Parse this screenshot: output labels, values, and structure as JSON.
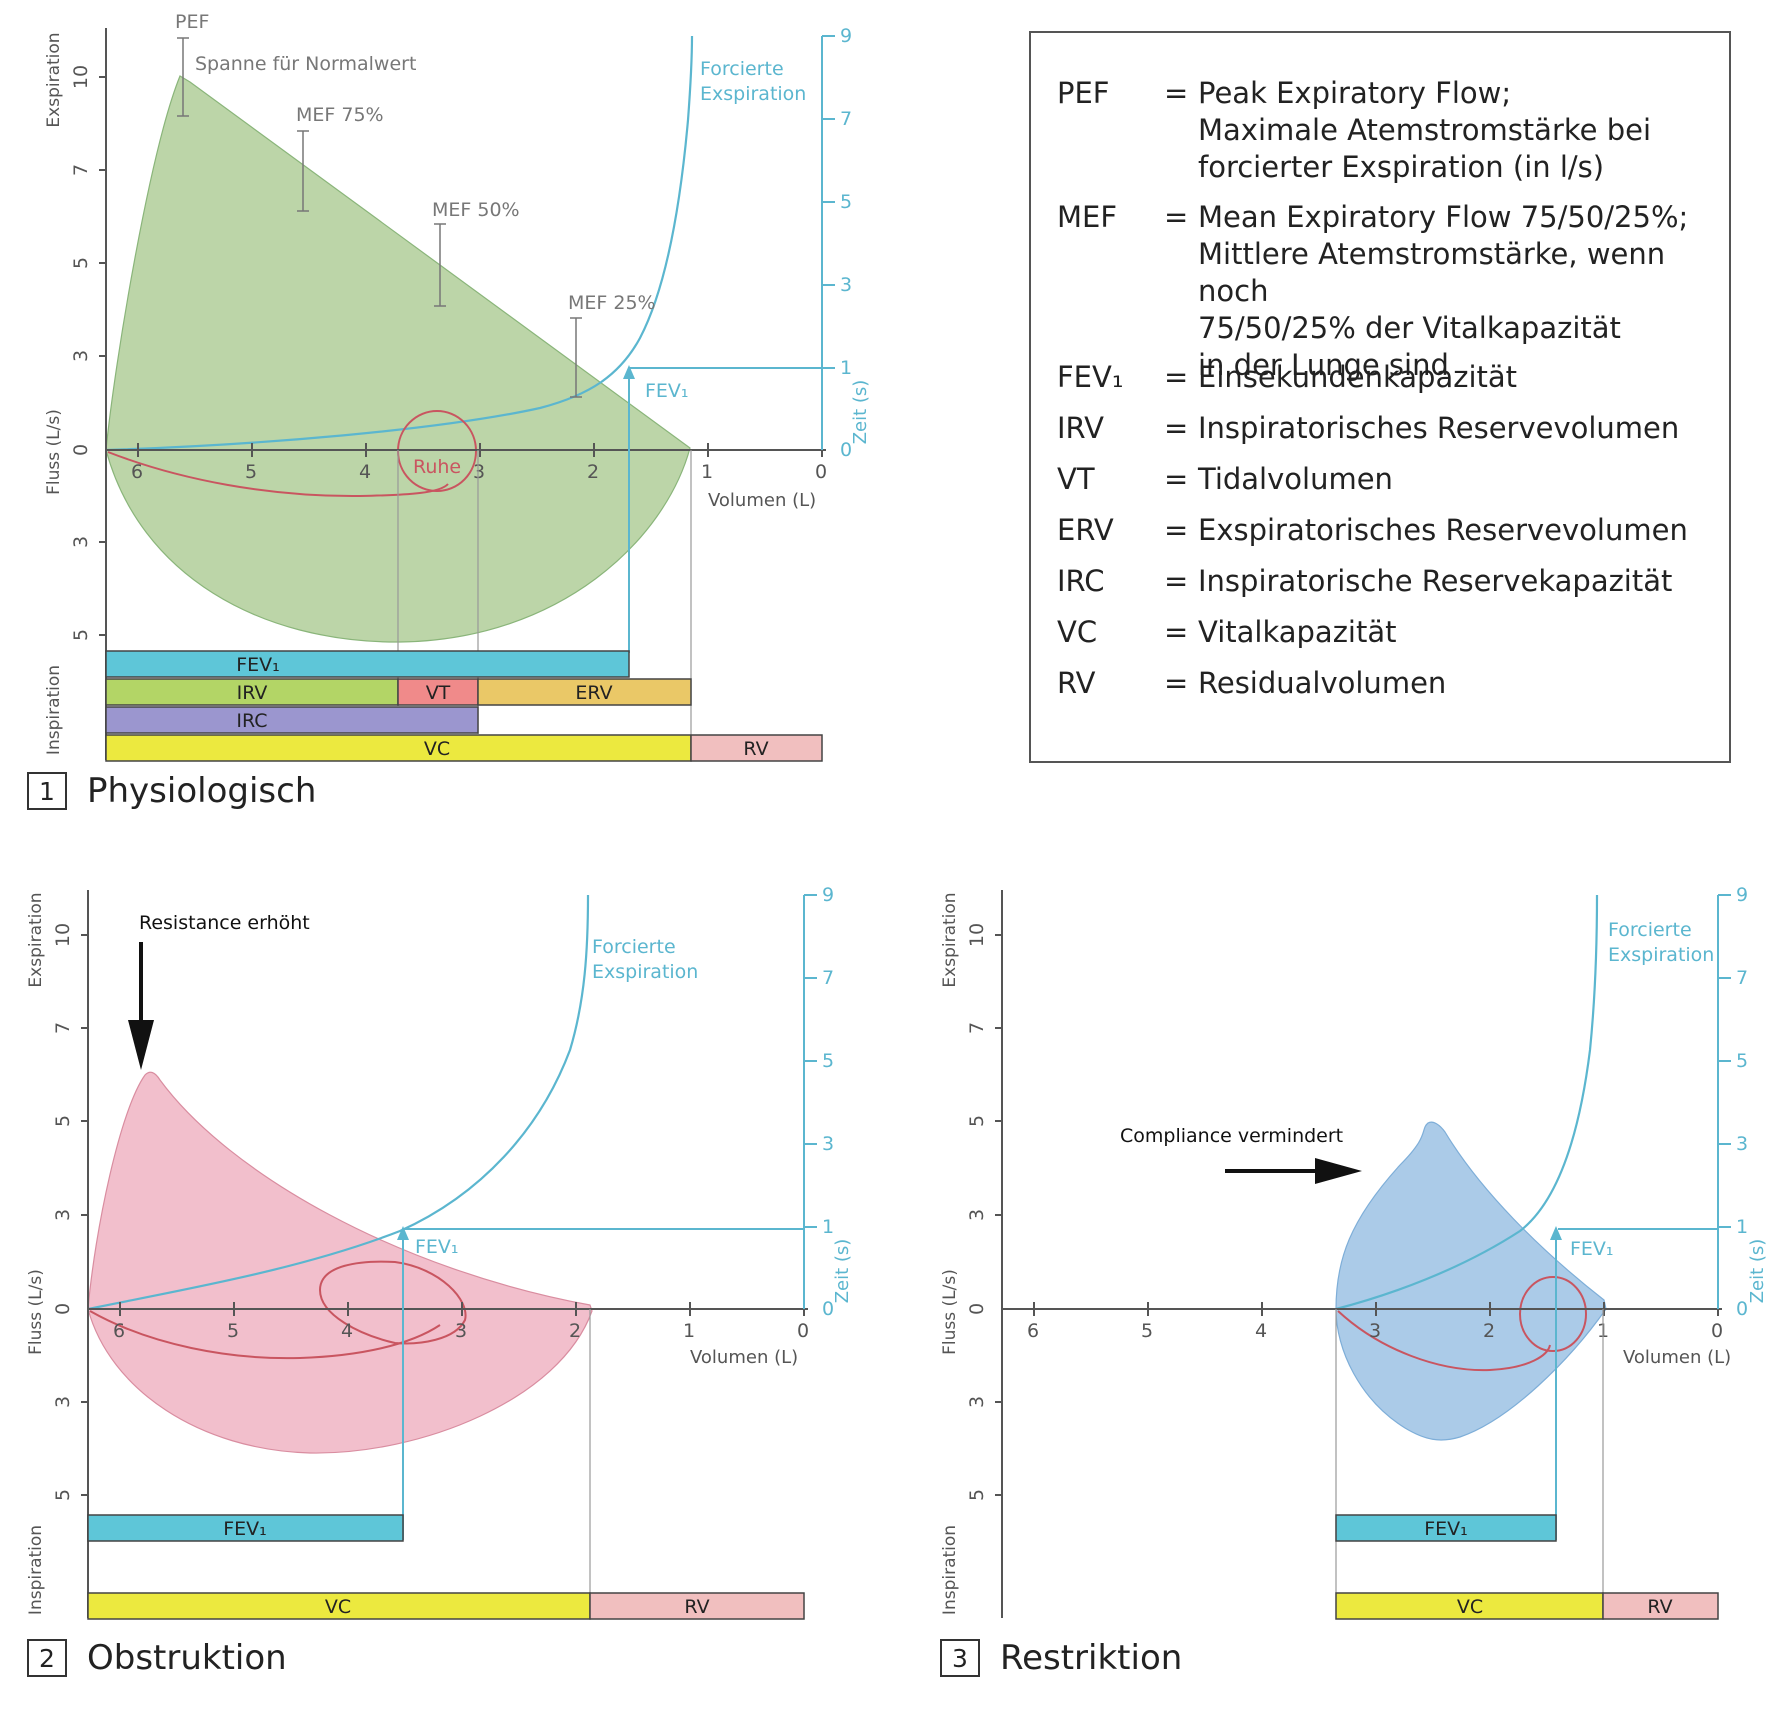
{
  "legend": [
    {
      "abbr": "PEF",
      "eq": "=",
      "def": "Peak Expiratory Flow;\nMaximale Atemstromstärke bei\nforcierter Exspiration (in l/s)"
    },
    {
      "abbr": "MEF",
      "eq": "=",
      "def": "Mean Expiratory Flow 75/50/25%;\nMittlere Atemstromstärke, wenn noch\n75/50/25% der Vitalkapazität\nin der Lunge sind"
    },
    {
      "abbr": "FEV₁",
      "eq": "=",
      "def": "Einsekundenkapazität"
    },
    {
      "abbr": "IRV",
      "eq": "=",
      "def": "Inspiratorisches Reservevolumen"
    },
    {
      "abbr": "VT",
      "eq": "=",
      "def": "Tidalvolumen"
    },
    {
      "abbr": "ERV",
      "eq": "=",
      "def": "Exspiratorisches Reservevolumen"
    },
    {
      "abbr": "IRC",
      "eq": "=",
      "def": "Inspiratorische Reservekapazität"
    },
    {
      "abbr": "VC",
      "eq": "=",
      "def": "Vitalkapazität"
    },
    {
      "abbr": "RV",
      "eq": "=",
      "def": "Residualvolumen"
    }
  ],
  "common": {
    "ylabel_top": "Exspiration",
    "ylabel_mid": "Fluss (L/s)",
    "ylabel_bottom": "Inspiration",
    "xlabel": "Volumen (L)",
    "zeit_label": "Zeit (s)",
    "forced_line1": "Forcierte",
    "forced_line2": "Exspiration",
    "fev1_label": "FEV₁",
    "x_ticks": [
      "6",
      "5",
      "4",
      "3",
      "2",
      "1",
      "0"
    ],
    "y_ticks_exp": [
      "10",
      "7",
      "5",
      "3",
      "0"
    ],
    "y_ticks_insp": [
      "3",
      "5"
    ],
    "t_ticks": [
      "9",
      "7",
      "5",
      "3",
      "1",
      "0"
    ]
  },
  "panel1": {
    "number": "1",
    "title": "Physiologisch",
    "pef_label": "PEF",
    "normal_label": "Spanne für Normalwert",
    "mef75_label": "MEF 75%",
    "mef50_label": "MEF 50%",
    "mef25_label": "MEF 25%",
    "ruhe_label": "Ruhe",
    "bars": {
      "fev1": "FEV₁",
      "irv": "IRV",
      "vt": "VT",
      "erv": "ERV",
      "irc": "IRC",
      "vc": "VC",
      "rv": "RV"
    }
  },
  "panel2": {
    "number": "2",
    "title": "Obstruktion",
    "annotation": "Resistance erhöht",
    "bars": {
      "fev1": "FEV₁",
      "vc": "VC",
      "rv": "RV"
    }
  },
  "panel3": {
    "number": "3",
    "title": "Restriktion",
    "annotation": "Compliance vermindert",
    "bars": {
      "fev1": "FEV₁",
      "vc": "VC",
      "rv": "RV"
    }
  },
  "colors": {
    "green_loop": "#bcd5a8",
    "pink_loop": "#f2bfcc",
    "blue_loop": "#abcbe8",
    "cyan": "#5bb6cf",
    "tidal_red": "#c95560",
    "fev1_bar": "#5ec6d8",
    "irv_bar": "#b3d566",
    "vt_bar": "#f08a8a",
    "erv_bar": "#eac867",
    "irc_bar": "#9b96cf",
    "vc_bar": "#ece93f",
    "rv_bar": "#f1bfbf"
  }
}
